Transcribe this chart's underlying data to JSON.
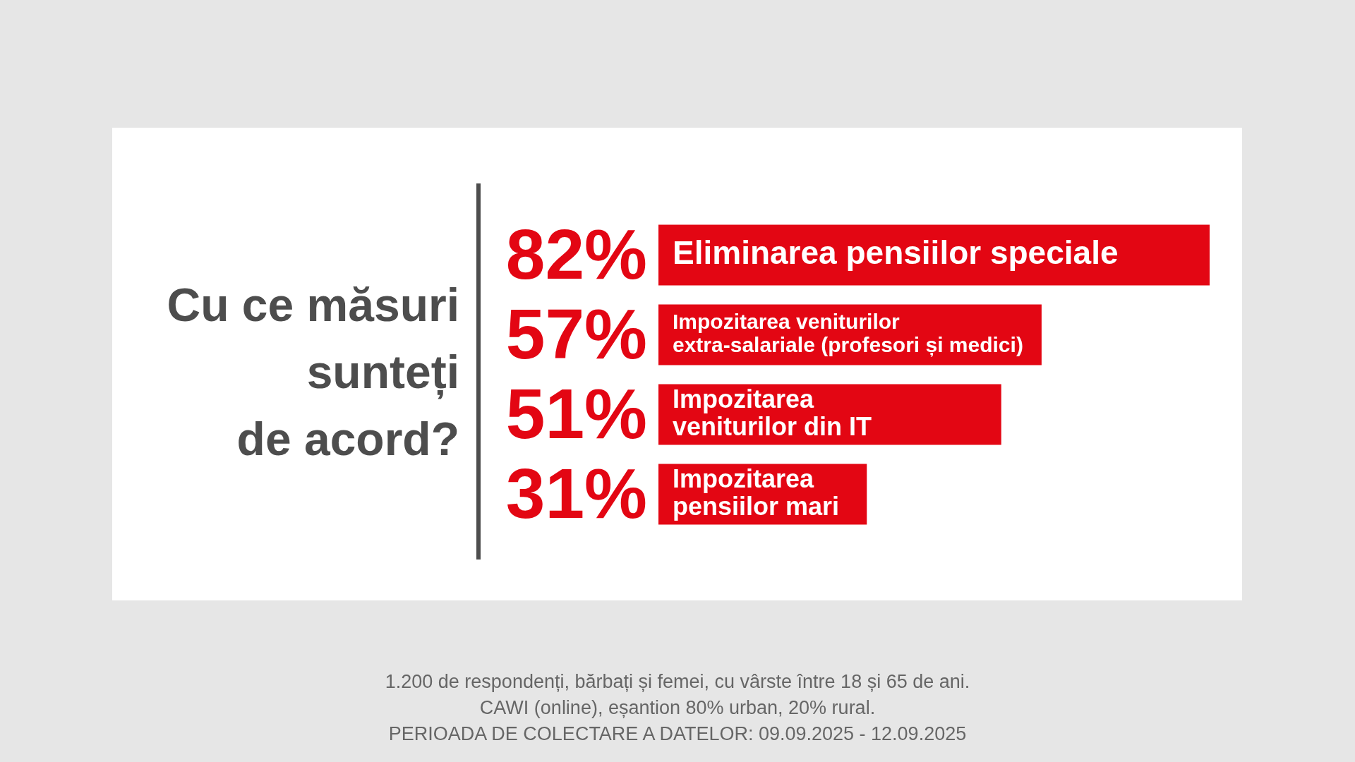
{
  "chart_data": {
    "type": "bar",
    "orientation": "horizontal",
    "title": "Cu ce măsuri\nsunteți\nde acord?",
    "categories": [
      "Eliminarea pensiilor speciale",
      "Impozitarea veniturilor\nextra-salariale (profesori și medici)",
      "Impozitarea\nveniturilor din IT",
      "Impozitarea\npensiilor mari"
    ],
    "values": [
      82,
      57,
      51,
      31
    ],
    "value_labels": [
      "82%",
      "57%",
      "51%",
      "31%"
    ],
    "color": "#e30613",
    "tick_labels": false,
    "annotations": [
      "1.200 de respondenți, bărbați și femei, cu vârste între 18 și 65 de ani.",
      "CAWI (online), eșantion 80% urban, 20% rural.",
      "PERIOADA DE COLECTARE A DATELOR: 09.09.2025 - 12.09.2025"
    ]
  }
}
